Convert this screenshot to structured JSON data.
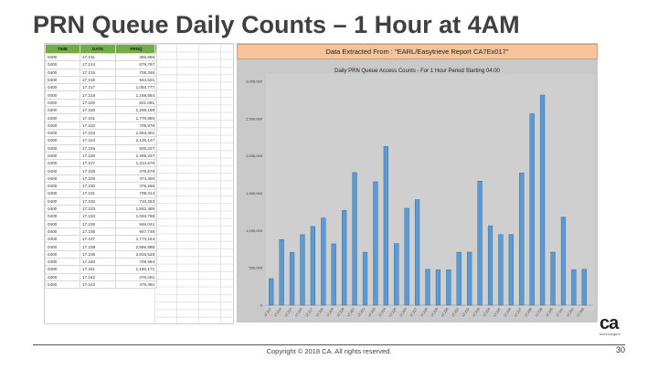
{
  "slide": {
    "title": "PRN Queue Daily Counts – 1 Hour at 4AM",
    "copyright": "Copyright © 2018 CA. All rights reserved.",
    "page_number": "30",
    "logo_text": "ca",
    "logo_subtext": "technologies"
  },
  "sheet": {
    "headers": [
      "TIME",
      "DATE",
      "PRNQ"
    ],
    "rows": [
      [
        "0400",
        "17.211",
        "355,666"
      ],
      [
        "0400",
        "17.214",
        "879,787"
      ],
      [
        "0400",
        "17.215",
        "708,346"
      ],
      [
        "0400",
        "17.216",
        "944,531"
      ],
      [
        "0400",
        "17.217",
        "1,054,777"
      ],
      [
        "0400",
        "17.218",
        "1,168,584"
      ],
      [
        "0400",
        "17.220",
        "821,091"
      ],
      [
        "0400",
        "17.220",
        "1,268,168"
      ],
      [
        "0400",
        "17.221",
        "1,776,896"
      ],
      [
        "0400",
        "17.222",
        "708,976"
      ],
      [
        "0400",
        "17.223",
        "1,653,301"
      ],
      [
        "0400",
        "17.224",
        "2,126,147"
      ],
      [
        "0400",
        "17.225",
        "826,227"
      ],
      [
        "0400",
        "17.226",
        "1,298,237"
      ],
      [
        "0400",
        "17.227",
        "1,414,676"
      ],
      [
        "0400",
        "17.228",
        "479,579"
      ],
      [
        "0400",
        "17.229",
        "474,400"
      ],
      [
        "0400",
        "17.230",
        "475,266"
      ],
      [
        "0400",
        "17.231",
        "709,314"
      ],
      [
        "0400",
        "17.232",
        "710,253"
      ],
      [
        "0400",
        "17.233",
        "1,662,489"
      ],
      [
        "0400",
        "17.234",
        "1,063,768"
      ],
      [
        "0400",
        "17.235",
        "946,041"
      ],
      [
        "0400",
        "17.236",
        "947,738"
      ],
      [
        "0400",
        "17.237",
        "1,773,164"
      ],
      [
        "0400",
        "17.238",
        "2,565,985"
      ],
      [
        "0400",
        "17.239",
        "2,816,528"
      ],
      [
        "0400",
        "17.240",
        "709,994"
      ],
      [
        "0400",
        "17.241",
        "1,180,171"
      ],
      [
        "0400",
        "17.242",
        "476,261"
      ],
      [
        "0400",
        "17.243",
        "479,391"
      ]
    ]
  },
  "chart": {
    "banner": "Data Extracted From   :   \"EARL/Easytrieve Report CA7Ex017\"",
    "bar_color": "#5b9bd5",
    "bar_edge": "#2e5f8c"
  },
  "chart_data": {
    "type": "bar",
    "title": "Daily PRN Queue Access Counts - For 1 Hour Period Starting 04:00",
    "xlabel": "",
    "ylabel": "",
    "ylim": [
      0,
      3000000
    ],
    "yticks": [
      0,
      500000,
      1000000,
      1500000,
      2000000,
      2500000,
      3000000
    ],
    "ytick_labels": [
      "0",
      "500,000",
      "1,000,000",
      "1,500,000",
      "2,000,000",
      "2,500,000",
      "3,000,000"
    ],
    "categories": [
      "17.211",
      "17.214",
      "17.215",
      "17.216",
      "17.217",
      "17.218",
      "17.220",
      "17.220",
      "17.221",
      "17.222",
      "17.223",
      "17.224",
      "17.225",
      "17.226",
      "17.227",
      "17.228",
      "17.229",
      "17.230",
      "17.231",
      "17.232",
      "17.233",
      "17.234",
      "17.235",
      "17.236",
      "17.237",
      "17.238",
      "17.239",
      "17.240",
      "17.241",
      "17.242",
      "17.243"
    ],
    "values": [
      355666,
      879787,
      708346,
      944531,
      1054777,
      1168584,
      821091,
      1268168,
      1776896,
      708976,
      1653301,
      2126147,
      826227,
      1298237,
      1414676,
      479579,
      474400,
      475266,
      709314,
      710253,
      1662489,
      1063768,
      946041,
      947738,
      1773164,
      2565985,
      2816528,
      709994,
      1180171,
      476261,
      479391
    ],
    "grid": false,
    "legend": "none"
  }
}
